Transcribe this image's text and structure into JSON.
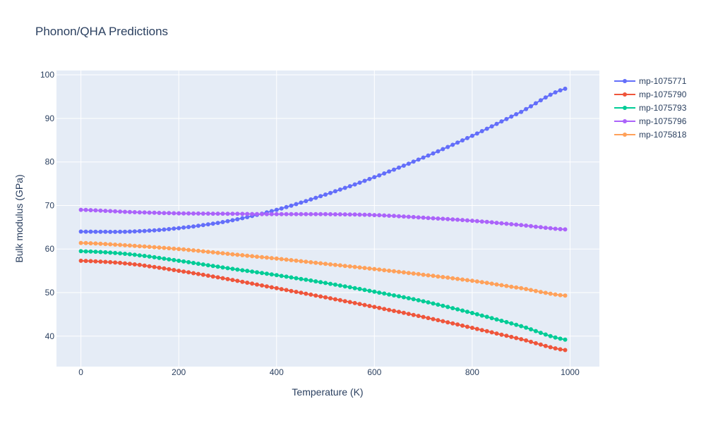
{
  "chart_data": {
    "type": "line",
    "title": "Phonon/QHA Predictions",
    "xlabel": "Temperature (K)",
    "ylabel": "Bulk modulus (GPa)",
    "xlim": [
      -50,
      1060
    ],
    "ylim": [
      33,
      101
    ],
    "x_ticks": [
      0,
      200,
      400,
      600,
      800,
      1000
    ],
    "y_ticks": [
      40,
      50,
      60,
      70,
      80,
      90,
      100
    ],
    "grid": true,
    "legend_position": "top-right",
    "x": [
      0,
      100,
      200,
      300,
      400,
      500,
      600,
      700,
      800,
      900,
      990
    ],
    "series": [
      {
        "name": "mp-1075771",
        "color": "#636efa",
        "values": [
          64.0,
          64.0,
          64.8,
          66.4,
          69.0,
          72.5,
          76.5,
          81.0,
          86.0,
          91.5,
          96.8
        ]
      },
      {
        "name": "mp-1075790",
        "color": "#ef553b",
        "values": [
          57.3,
          56.6,
          55.0,
          53.1,
          51.0,
          48.9,
          46.7,
          44.4,
          41.9,
          39.3,
          36.8
        ]
      },
      {
        "name": "mp-1075793",
        "color": "#00cc96",
        "values": [
          59.5,
          58.8,
          57.3,
          55.6,
          54.0,
          52.2,
          50.2,
          48.0,
          45.3,
          42.3,
          39.2
        ]
      },
      {
        "name": "mp-1075796",
        "color": "#ab63fa",
        "values": [
          69.0,
          68.5,
          68.2,
          68.1,
          68.0,
          68.0,
          67.8,
          67.2,
          66.5,
          65.5,
          64.5
        ]
      },
      {
        "name": "mp-1075818",
        "color": "#ffa15a",
        "values": [
          61.4,
          60.8,
          60.0,
          58.9,
          57.8,
          56.6,
          55.4,
          54.1,
          52.7,
          51.0,
          49.3
        ]
      }
    ]
  }
}
